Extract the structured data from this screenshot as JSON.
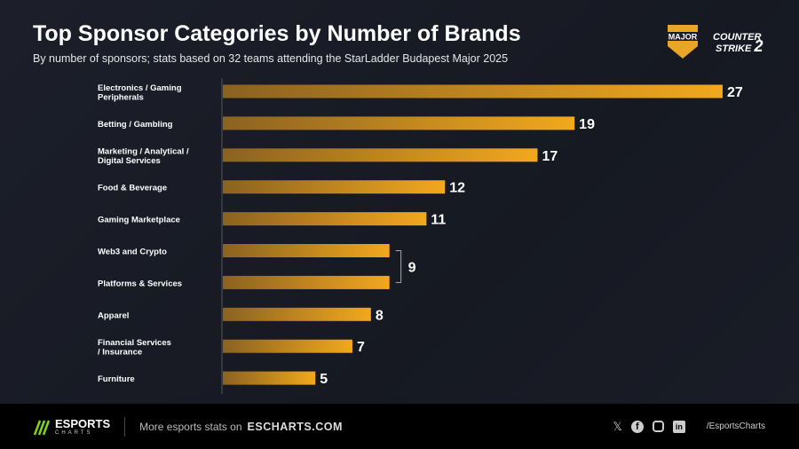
{
  "title": "Top Sponsor Categories by Number of Brands",
  "subtitle": "By number of sponsors; stats based on 32 teams attending the StarLadder Budapest Major 2025",
  "logos": {
    "major": "MAJOR BUDAPEST 2025",
    "cs2": "COUNTER STRIKE 2"
  },
  "colors": {
    "bar_start": "#8a6220",
    "bar_end": "#f2a81e",
    "background": "#181b24"
  },
  "chart_data": {
    "type": "bar",
    "orientation": "horizontal",
    "categories": [
      "Electronics / Gaming Peripherals",
      "Betting / Gambling",
      "Marketing / Analytical / Digital Services",
      "Food & Beverage",
      "Gaming Marketplace",
      "Web3 and Crypto",
      "Platforms & Services",
      "Apparel",
      "Financial Services / Insurance",
      "Furniture"
    ],
    "label_lines": [
      [
        "Electronics / Gaming",
        "Peripherals"
      ],
      [
        "Betting / Gambling"
      ],
      [
        "Marketing / Analytical /",
        "Digital Services"
      ],
      [
        "Food & Beverage"
      ],
      [
        "Gaming Marketplace"
      ],
      [
        "Web3 and Crypto"
      ],
      [
        "Platforms & Services"
      ],
      [
        "Apparel"
      ],
      [
        "Financial Services",
        "/ Insurance"
      ],
      [
        "Furniture"
      ]
    ],
    "values": [
      27,
      19,
      17,
      12,
      11,
      9,
      9,
      8,
      7,
      5
    ],
    "data_labels": [
      "27",
      "19",
      "17",
      "12",
      "11",
      "",
      "",
      "8",
      "7",
      "5"
    ],
    "group_label": {
      "text": "9",
      "categories": [
        "Web3 and Crypto",
        "Platforms & Services"
      ]
    },
    "xlim": [
      0,
      27
    ],
    "grid": false
  },
  "footer": {
    "brand": "ESPORTS",
    "brand_sub": "CHARTS",
    "more": "More esports stats on",
    "site": "ESCHARTS.COM",
    "handle": "/EsportsCharts",
    "social": [
      "x-icon",
      "facebook-icon",
      "instagram-icon",
      "linkedin-icon"
    ]
  }
}
